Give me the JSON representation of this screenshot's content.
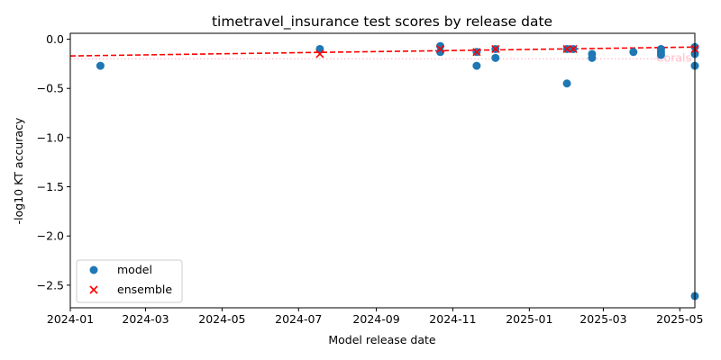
{
  "chart_data": {
    "type": "scatter",
    "title": "timetravel_insurance test scores by release date",
    "xlabel": "Model release date",
    "ylabel": "-log10 KT accuracy",
    "x_axis_type": "date",
    "xlim": [
      "2024-01-01",
      "2025-05-13"
    ],
    "ylim": [
      -2.73,
      0.06
    ],
    "x_ticks": [
      "2024-01-01",
      "2024-03-01",
      "2024-05-01",
      "2024-07-01",
      "2024-09-01",
      "2024-11-01",
      "2025-01-01",
      "2025-03-01",
      "2025-05-01"
    ],
    "x_tick_labels": [
      "2024-01",
      "2024-03",
      "2024-05",
      "2024-07",
      "2024-09",
      "2024-11",
      "2025-01",
      "2025-03",
      "2025-05"
    ],
    "y_ticks": [
      0.0,
      -0.5,
      -1.0,
      -1.5,
      -2.0,
      -2.5
    ],
    "y_tick_labels": [
      "0.0",
      "−0.5",
      "−1.0",
      "−1.5",
      "−2.0",
      "−2.5"
    ],
    "grid": false,
    "legend": {
      "position": "lower-left",
      "entries": [
        {
          "label": "model",
          "marker": "circle",
          "color": "#1f77b4"
        },
        {
          "label": "ensemble",
          "marker": "x",
          "color": "#ff0000"
        }
      ]
    },
    "series": [
      {
        "name": "model",
        "marker": "circle",
        "color": "#1f77b4",
        "points": [
          {
            "x": "2024-01-25",
            "y": -0.27
          },
          {
            "x": "2024-07-18",
            "y": -0.1
          },
          {
            "x": "2024-10-22",
            "y": -0.07
          },
          {
            "x": "2024-10-22",
            "y": -0.13
          },
          {
            "x": "2024-11-20",
            "y": -0.27
          },
          {
            "x": "2024-11-20",
            "y": -0.13
          },
          {
            "x": "2024-12-05",
            "y": -0.19
          },
          {
            "x": "2024-12-05",
            "y": -0.1
          },
          {
            "x": "2025-01-31",
            "y": -0.45
          },
          {
            "x": "2025-01-31",
            "y": -0.1
          },
          {
            "x": "2025-02-05",
            "y": -0.1
          },
          {
            "x": "2025-02-20",
            "y": -0.15
          },
          {
            "x": "2025-02-20",
            "y": -0.19
          },
          {
            "x": "2025-03-25",
            "y": -0.13
          },
          {
            "x": "2025-04-16",
            "y": -0.1
          },
          {
            "x": "2025-04-16",
            "y": -0.13
          },
          {
            "x": "2025-04-16",
            "y": -0.16
          },
          {
            "x": "2025-05-13",
            "y": -0.08
          },
          {
            "x": "2025-05-13",
            "y": -0.15
          },
          {
            "x": "2025-05-13",
            "y": -0.27
          },
          {
            "x": "2025-05-13",
            "y": -2.61
          }
        ]
      },
      {
        "name": "ensemble",
        "marker": "x",
        "color": "#ff0000",
        "points": [
          {
            "x": "2024-07-18",
            "y": -0.15
          },
          {
            "x": "2024-10-22",
            "y": -0.1
          },
          {
            "x": "2024-11-20",
            "y": -0.13
          },
          {
            "x": "2024-12-05",
            "y": -0.1
          },
          {
            "x": "2025-01-31",
            "y": -0.1
          },
          {
            "x": "2025-02-05",
            "y": -0.1
          },
          {
            "x": "2025-05-13",
            "y": -0.1
          }
        ]
      }
    ],
    "trend_line": {
      "style": "dashed",
      "color": "#ff0000",
      "start": {
        "x": "2024-01-01",
        "y": -0.17
      },
      "end": {
        "x": "2025-05-13",
        "y": -0.08
      }
    },
    "reference_line": {
      "label": "Corals",
      "y": -0.2,
      "style": "dotted",
      "color": "#ffc0cb"
    }
  }
}
